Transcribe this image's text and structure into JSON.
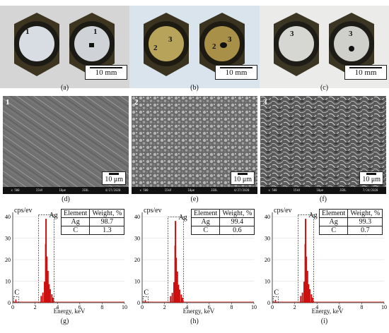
{
  "panels_photo": [
    {
      "caption": "(a)",
      "labels": [
        "1",
        "1"
      ],
      "scale": "10 mm",
      "face": [
        "#d8dde4",
        "#cfd2d6"
      ]
    },
    {
      "caption": "(b)",
      "labels": [
        "2",
        "3",
        "2",
        "3"
      ],
      "scale": "10 mm",
      "face": [
        "#b7a45a",
        "#a89049"
      ]
    },
    {
      "caption": "(c)",
      "labels": [
        "3",
        "3"
      ],
      "scale": "10 mm",
      "face": [
        "#d6d6d2",
        "#cfcfcb"
      ]
    }
  ],
  "panels_sem": [
    {
      "caption": "(d)",
      "label": "1",
      "scale": "10 μm",
      "strip": [
        "x 500",
        "15kV",
        "10μm",
        "JEOL",
        "4/27/2020"
      ]
    },
    {
      "caption": "(e)",
      "label": "2",
      "scale": "10 μm",
      "strip": [
        "x 500",
        "15kV",
        "10μm",
        "JEOL",
        "4/27/2020"
      ]
    },
    {
      "caption": "(f)",
      "label": "3",
      "scale": "10 μm",
      "strip": [
        "x 500",
        "15kV",
        "10μm",
        "JEOL",
        "7/24/2020"
      ]
    }
  ],
  "chart_data": [
    {
      "type": "line",
      "caption": "(g)",
      "ylabel": "cps/ev",
      "xlabel": "Energy, keV",
      "xlim": [
        0,
        10
      ],
      "ylim": [
        0,
        42
      ],
      "xticks": [
        "0",
        "2",
        "4",
        "6",
        "8",
        "10"
      ],
      "yticks": [
        "0",
        "10",
        "20",
        "30",
        "40"
      ],
      "peaks": [
        {
          "label": "Ag",
          "x": 3.0,
          "y": 39
        },
        {
          "label": "C",
          "x": 0.28,
          "y": 1.5
        }
      ],
      "table": {
        "headers": [
          "Element",
          "Weight, %"
        ],
        "rows": [
          [
            "Ag",
            "98.7"
          ],
          [
            "C",
            "1.3"
          ]
        ]
      }
    },
    {
      "type": "line",
      "caption": "(h)",
      "ylabel": "cps/ev",
      "xlabel": "Energy, keV",
      "xlim": [
        0,
        10
      ],
      "ylim": [
        0,
        42
      ],
      "xticks": [
        "0",
        "2",
        "4",
        "6",
        "8",
        "10"
      ],
      "yticks": [
        "0",
        "10",
        "20",
        "30",
        "40"
      ],
      "peaks": [
        {
          "label": "Ag",
          "x": 3.0,
          "y": 38
        },
        {
          "label": "C",
          "x": 0.28,
          "y": 1.2
        }
      ],
      "table": {
        "headers": [
          "Element",
          "Weight, %"
        ],
        "rows": [
          [
            "Ag",
            "99.4"
          ],
          [
            "C",
            "0.6"
          ]
        ]
      }
    },
    {
      "type": "line",
      "caption": "(i)",
      "ylabel": "cps/ev",
      "xlabel": "Energy, keV",
      "xlim": [
        0,
        10
      ],
      "ylim": [
        0,
        42
      ],
      "xticks": [
        "0",
        "2",
        "4",
        "6",
        "8",
        "10"
      ],
      "yticks": [
        "0",
        "10",
        "20",
        "30",
        "40"
      ],
      "peaks": [
        {
          "label": "Ag",
          "x": 3.0,
          "y": 39
        },
        {
          "label": "C",
          "x": 0.28,
          "y": 1.3
        }
      ],
      "table": {
        "headers": [
          "Element",
          "Weight, %"
        ],
        "rows": [
          [
            "Ag",
            "99.3"
          ],
          [
            "C",
            "0.7"
          ]
        ]
      }
    }
  ]
}
